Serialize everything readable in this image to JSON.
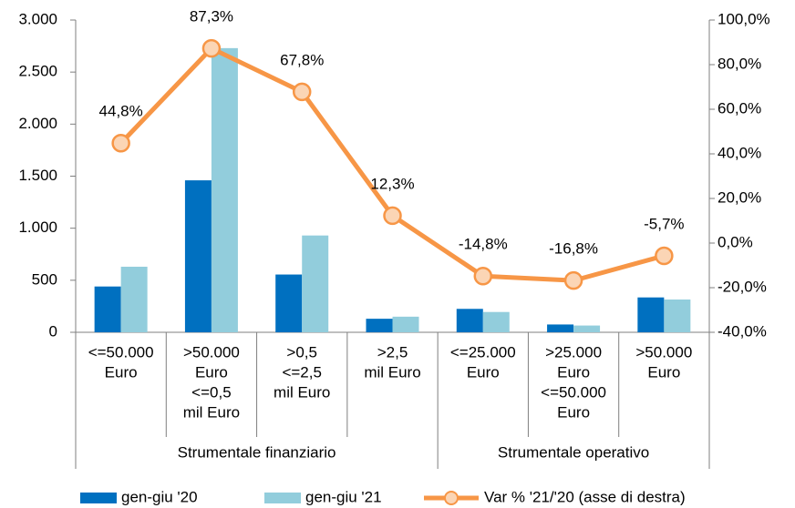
{
  "chart_data": {
    "type": "bar_line",
    "category_groups": [
      {
        "name": "Strumentale finanziario",
        "categories": [
          [
            "<=50.000",
            "Euro"
          ],
          [
            ">50.000",
            "Euro",
            "<=0,5",
            "mil Euro"
          ],
          [
            ">0,5",
            "<=2,5",
            "mil Euro"
          ],
          [
            ">2,5",
            "mil Euro"
          ]
        ]
      },
      {
        "name": "Strumentale operativo",
        "categories": [
          [
            "<=25.000",
            "Euro"
          ],
          [
            ">25.000",
            "Euro",
            "<=50.000",
            "Euro"
          ],
          [
            ">50.000",
            "Euro"
          ]
        ]
      }
    ],
    "series": [
      {
        "name": "gen-giu '20",
        "color": "#0070c0",
        "type": "bar",
        "values": [
          440,
          1460,
          555,
          130,
          225,
          75,
          335
        ]
      },
      {
        "name": "gen-giu '21",
        "color": "#92cddc",
        "type": "bar",
        "values": [
          630,
          2730,
          930,
          150,
          195,
          65,
          315
        ]
      },
      {
        "name": "Var % '21/'20 (asse di destra)",
        "color": "#f79646",
        "marker_fill": "#fbd5b5",
        "type": "line",
        "axis": "y2",
        "values": [
          44.8,
          87.3,
          67.8,
          12.3,
          -14.8,
          -16.8,
          -5.7
        ],
        "value_labels": [
          "44,8%",
          "87,3%",
          "67,8%",
          "12,3%",
          "-14,8%",
          "-16,8%",
          "-5,7%"
        ]
      }
    ],
    "ylim": [
      0,
      3000
    ],
    "yticks": [
      0,
      {
        "value": 500,
        "label": "500"
      },
      {
        "value": 1000,
        "label": "1.000"
      },
      {
        "value": 1500,
        "label": "1.500"
      },
      {
        "value": 2000,
        "label": "2.000"
      },
      {
        "value": 2500,
        "label": "2.500"
      },
      {
        "value": 3000,
        "label": "3.000"
      }
    ],
    "y2lim": [
      -40,
      100
    ],
    "y2ticks": [
      {
        "value": -40,
        "label": "-40,0%"
      },
      {
        "value": -20,
        "label": "-20,0%"
      },
      {
        "value": 0,
        "label": "0,0%"
      },
      {
        "value": 20,
        "label": "20,0%"
      },
      {
        "value": 40,
        "label": "40,0%"
      },
      {
        "value": 60,
        "label": "60,0%"
      },
      {
        "value": 80,
        "label": "80,0%"
      },
      {
        "value": 100,
        "label": "100,0%"
      }
    ],
    "grid": false,
    "legend": "bottom"
  }
}
